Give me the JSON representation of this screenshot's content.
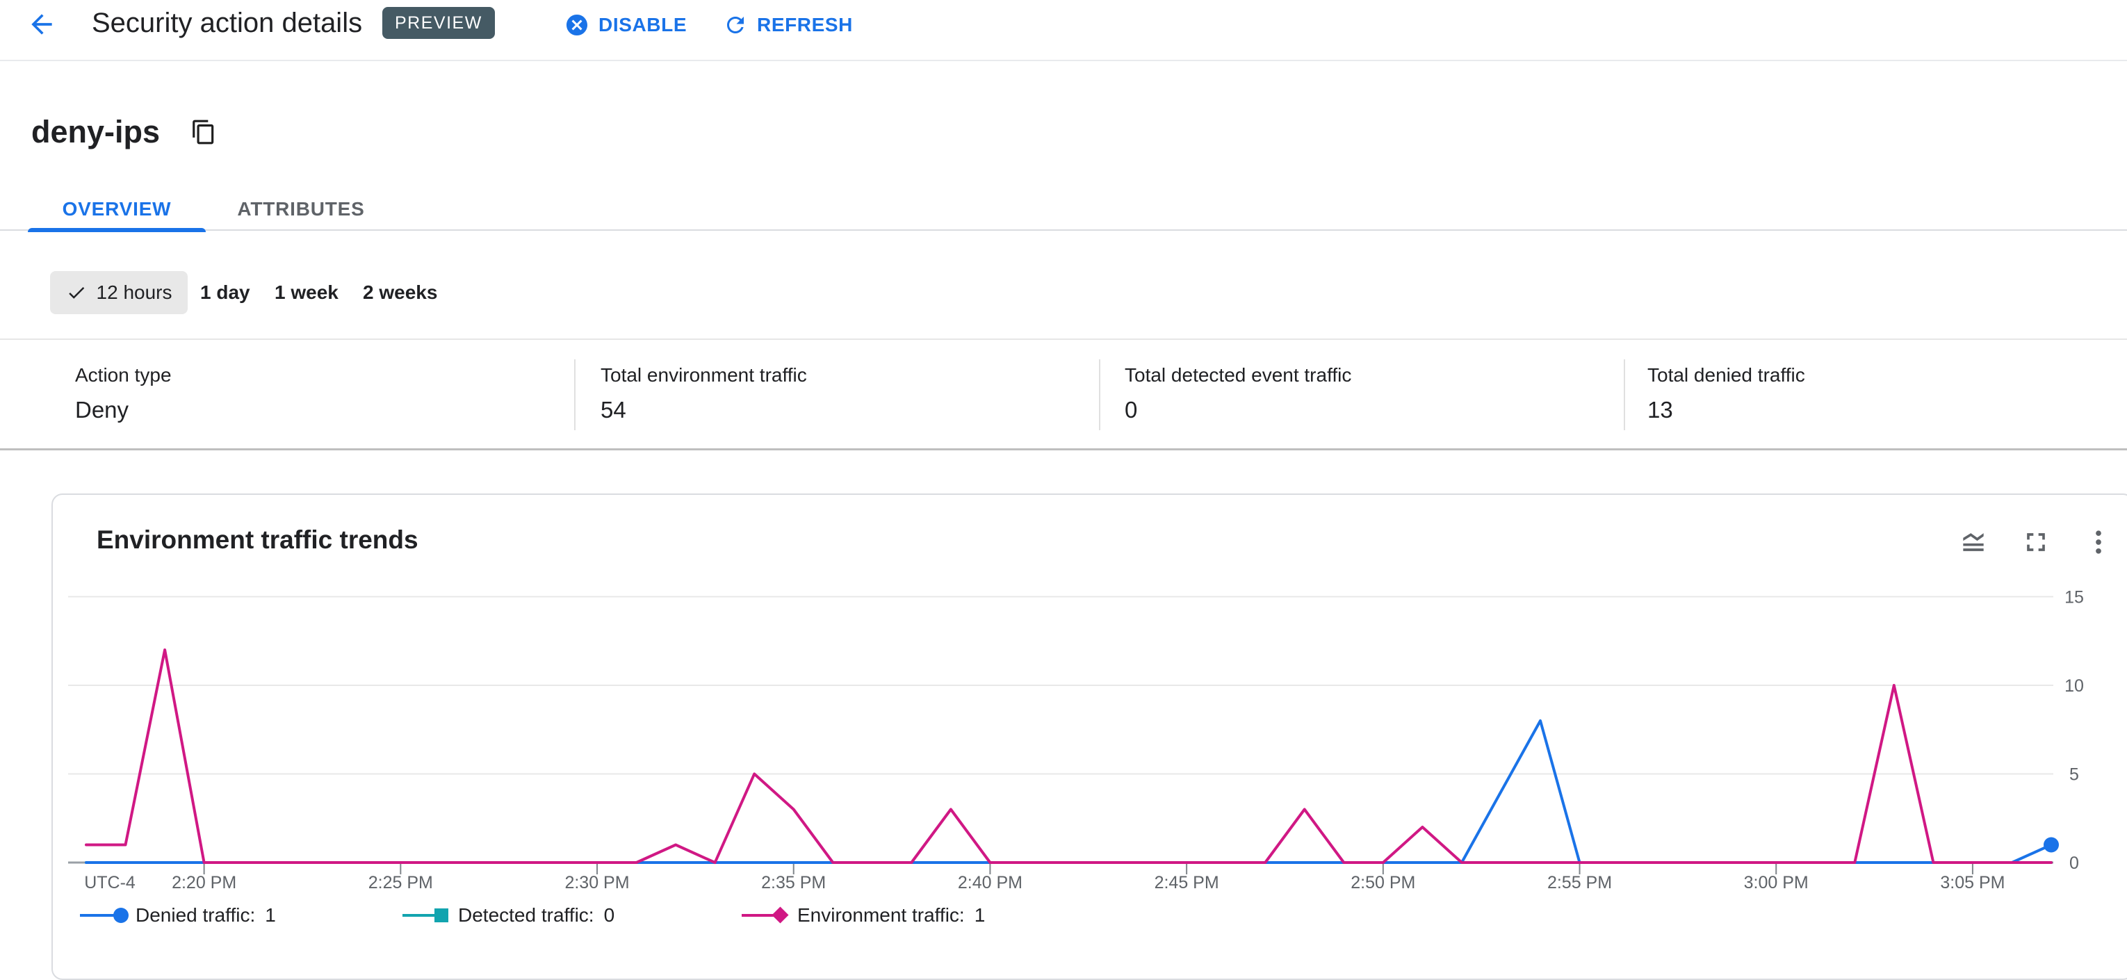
{
  "header": {
    "title": "Security action details",
    "preview_badge": "PREVIEW",
    "disable_label": "DISABLE",
    "refresh_label": "REFRESH"
  },
  "action_name": "deny-ips",
  "tabs": [
    {
      "label": "OVERVIEW",
      "active": true
    },
    {
      "label": "ATTRIBUTES",
      "active": false
    }
  ],
  "time_filters": {
    "selected": "12 hours",
    "options": [
      "12 hours",
      "1 day",
      "1 week",
      "2 weeks"
    ]
  },
  "stats": [
    {
      "label": "Action type",
      "value": "Deny"
    },
    {
      "label": "Total environment traffic",
      "value": "54"
    },
    {
      "label": "Total detected event traffic",
      "value": "0"
    },
    {
      "label": "Total denied traffic",
      "value": "13"
    }
  ],
  "chart_card": {
    "title": "Environment traffic trends",
    "icons": [
      "legend-toggle",
      "fullscreen",
      "more-vert"
    ]
  },
  "chart_data": {
    "type": "line",
    "title": "Environment traffic trends",
    "x_label_prefix": "UTC-4",
    "x": [
      "2:17 PM",
      "2:18 PM",
      "2:19 PM",
      "2:20 PM",
      "2:21 PM",
      "2:22 PM",
      "2:23 PM",
      "2:24 PM",
      "2:25 PM",
      "2:26 PM",
      "2:27 PM",
      "2:28 PM",
      "2:29 PM",
      "2:30 PM",
      "2:31 PM",
      "2:32 PM",
      "2:33 PM",
      "2:34 PM",
      "2:35 PM",
      "2:36 PM",
      "2:37 PM",
      "2:38 PM",
      "2:39 PM",
      "2:40 PM",
      "2:41 PM",
      "2:42 PM",
      "2:43 PM",
      "2:44 PM",
      "2:45 PM",
      "2:46 PM",
      "2:47 PM",
      "2:48 PM",
      "2:49 PM",
      "2:50 PM",
      "2:51 PM",
      "2:52 PM",
      "2:53 PM",
      "2:54 PM",
      "2:55 PM",
      "2:56 PM",
      "2:57 PM",
      "2:58 PM",
      "2:59 PM",
      "3:00 PM",
      "3:01 PM",
      "3:02 PM",
      "3:03 PM",
      "3:04 PM",
      "3:05 PM",
      "3:06 PM",
      "3:07 PM"
    ],
    "x_ticks": [
      "2:20 PM",
      "2:25 PM",
      "2:30 PM",
      "2:35 PM",
      "2:40 PM",
      "2:45 PM",
      "2:50 PM",
      "2:55 PM",
      "3:00 PM",
      "3:05 PM"
    ],
    "y_ticks": [
      0,
      5,
      10,
      15
    ],
    "ylim": [
      0,
      15
    ],
    "y_axis_side": "right",
    "grid": true,
    "legend_position": "bottom",
    "series": [
      {
        "name": "Denied traffic",
        "legend_label": "Denied traffic:",
        "legend_value": "1",
        "color": "#1a73e8",
        "marker": "circle",
        "values": [
          0,
          0,
          0,
          0,
          0,
          0,
          0,
          0,
          0,
          0,
          0,
          0,
          0,
          0,
          0,
          0,
          0,
          0,
          0,
          0,
          0,
          0,
          0,
          0,
          0,
          0,
          0,
          0,
          0,
          0,
          0,
          0,
          0,
          0,
          0,
          0,
          4,
          8,
          0,
          0,
          0,
          0,
          0,
          0,
          0,
          0,
          0,
          0,
          0,
          0,
          1
        ]
      },
      {
        "name": "Detected traffic",
        "legend_label": "Detected traffic:",
        "legend_value": "0",
        "color": "#12a4af",
        "marker": "square",
        "values": [
          0,
          0,
          0,
          0,
          0,
          0,
          0,
          0,
          0,
          0,
          0,
          0,
          0,
          0,
          0,
          0,
          0,
          0,
          0,
          0,
          0,
          0,
          0,
          0,
          0,
          0,
          0,
          0,
          0,
          0,
          0,
          0,
          0,
          0,
          0,
          0,
          0,
          0,
          0,
          0,
          0,
          0,
          0,
          0,
          0,
          0,
          0,
          0,
          0,
          0,
          0
        ]
      },
      {
        "name": "Environment traffic",
        "legend_label": "Environment traffic:",
        "legend_value": "1",
        "color": "#d01884",
        "marker": "diamond",
        "values": [
          1,
          1,
          12,
          0,
          0,
          0,
          0,
          0,
          0,
          0,
          0,
          0,
          0,
          0,
          0,
          1,
          0,
          5,
          3,
          0,
          0,
          0,
          3,
          0,
          0,
          0,
          0,
          0,
          0,
          0,
          0,
          3,
          0,
          0,
          2,
          0,
          0,
          0,
          0,
          0,
          0,
          0,
          0,
          0,
          0,
          0,
          10,
          0,
          0,
          0,
          0
        ]
      }
    ],
    "end_dot": {
      "series": "Denied traffic",
      "value": 1
    }
  },
  "colors": {
    "accent_blue": "#1a73e8",
    "chart_pink": "#d01884",
    "chart_teal": "#12a4af",
    "preview_badge_bg": "#455a64",
    "axis_line": "#9aa0a6",
    "gridline": "#e8e8e8",
    "text_primary": "#202124",
    "text_secondary": "#5f6368"
  }
}
